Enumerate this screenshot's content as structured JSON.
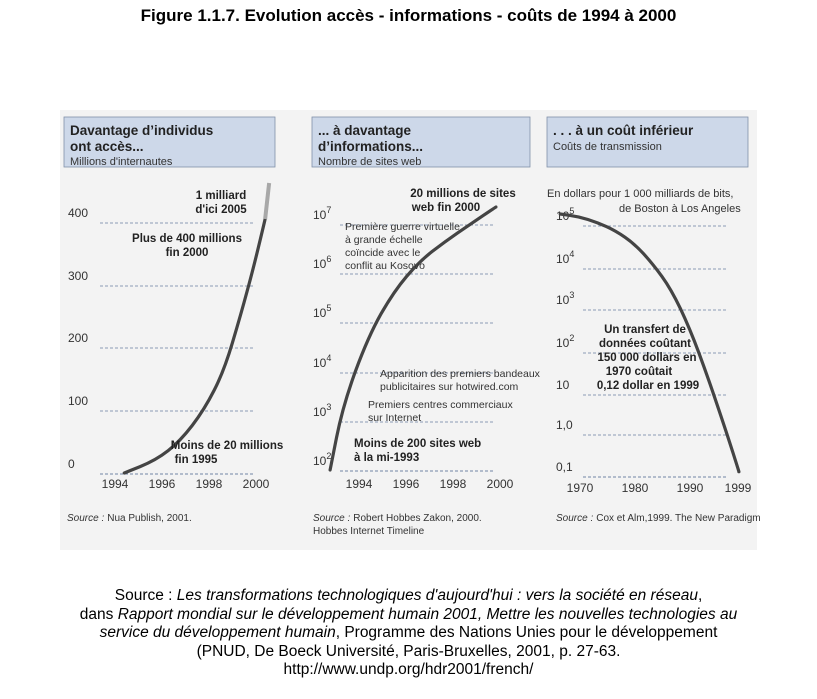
{
  "figure_title": "Figure 1.1.7. Evolution accès - informations - coûts de 1994 à 2000",
  "source": {
    "line1_prefix": "Source : ",
    "line1_italic": "Les transformations technologiques d'aujourd'hui : vers la société en réseau",
    "line1_suffix": ",",
    "line2_prefix": "dans ",
    "line2_italic": "Rapport mondial sur le développement humain 2001, Mettre les nouvelles technologies au",
    "line3_italic": "service du développement humain",
    "line3_suffix": ", Programme des Nations Unies pour le développement",
    "line4": "(PNUD, De Boeck Université, Paris-Bruxelles, 2001, p. 27-63.",
    "line5": "http://www.undp.org/hdr2001/french/"
  },
  "colors": {
    "header_fill": "#cdd8e9",
    "curve": "#444444",
    "grid": "#6a7fa0",
    "scan_bg": "#f3f3f3",
    "upper_segment": "#a8a8a8"
  },
  "chart_data": [
    {
      "type": "line",
      "title": "Davantage d'individus ont accès...",
      "subtitle": "Millions d'internautes",
      "source_note_label": "Source :",
      "source_note": "Nua Publish, 2001.",
      "x_ticks": [
        "1994",
        "1996",
        "1998",
        "2000"
      ],
      "y_ticks": [
        "0",
        "100",
        "200",
        "300",
        "400"
      ],
      "xlim": [
        1993.2,
        2000.2
      ],
      "ylim": [
        0,
        400
      ],
      "series": [
        {
          "x": [
            1994.2,
            1995.5,
            1996.5,
            1997.5,
            1998.3,
            1999.0,
            1999.5,
            2000.0
          ],
          "y": [
            0,
            20,
            50,
            100,
            160,
            250,
            320,
            400
          ]
        }
      ],
      "projection": {
        "x": [
          2000.0,
          2000.2
        ],
        "y": [
          400,
          450
        ]
      },
      "annotations": [
        {
          "text": "1 milliard",
          "bold": true
        },
        {
          "text": "d'ici 2005",
          "bold": true
        },
        {
          "text": "Plus de 400 millions",
          "bold": true
        },
        {
          "text": "fin 2000",
          "bold": true
        },
        {
          "text": "Moins de 20 millions",
          "bold": true
        },
        {
          "text": "fin 1995",
          "bold": true
        }
      ]
    },
    {
      "type": "line",
      "y_scale": "log",
      "title": "... à davantage d'informations...",
      "subtitle": "Nombre de sites web",
      "source_note_label": "Source :",
      "source_note": "Robert Hobbes Zakon, 2000.",
      "source_note2": "Hobbes Internet Timeline",
      "x_ticks": [
        "1994",
        "1996",
        "1998",
        "2000"
      ],
      "y_ticks": [
        {
          "base": "10",
          "exp": "2"
        },
        {
          "base": "10",
          "exp": "3"
        },
        {
          "base": "10",
          "exp": "4"
        },
        {
          "base": "10",
          "exp": "5"
        },
        {
          "base": "10",
          "exp": "6"
        },
        {
          "base": "10",
          "exp": "7"
        }
      ],
      "xlim": [
        1993.3,
        2000.2
      ],
      "ylim": [
        100,
        20000000
      ],
      "series": [
        {
          "x": [
            1993.5,
            1994.0,
            1995.0,
            1996.0,
            1997.0,
            1998.0,
            1999.0,
            2000.0
          ],
          "y": [
            100,
            2000,
            50000,
            400000,
            1600000,
            4000000,
            9000000,
            20000000
          ]
        }
      ],
      "annotations": [
        {
          "text": "20 millions de sites",
          "bold": true
        },
        {
          "text": "web fin 2000",
          "bold": true
        },
        {
          "text": "Première guerre virtuelle",
          "bold": false
        },
        {
          "text": "à grande échelle",
          "bold": false
        },
        {
          "text": "coïncide avec le",
          "bold": false
        },
        {
          "text": "conflit au Kosovo",
          "bold": false
        },
        {
          "text": "Apparition des premiers bandeaux",
          "bold": false
        },
        {
          "text": "publicitaires sur hotwired.com",
          "bold": false
        },
        {
          "text": "Premiers centres commerciaux",
          "bold": false
        },
        {
          "text": "sur Internet",
          "bold": false
        },
        {
          "text": "Moins de 200 sites web",
          "bold": true
        },
        {
          "text": "à la mi-1993",
          "bold": true
        }
      ]
    },
    {
      "type": "line",
      "y_scale": "log",
      "title": ". . . à un coût inférieur",
      "subtitle": "Coûts de transmission",
      "source_note_label": "Source :",
      "source_note": "Cox et Alm,1999. The New Paradigm",
      "unit_note": "En dollars pour 1 000 milliards de bits,",
      "unit_note2": "de Boston à Los Angeles",
      "x_ticks": [
        "1970",
        "1980",
        "1990",
        "1999"
      ],
      "y_ticks": [
        {
          "base": "0,1",
          "exp": ""
        },
        {
          "base": "1,0",
          "exp": ""
        },
        {
          "base": "10",
          "exp": ""
        },
        {
          "base": "10",
          "exp": "2"
        },
        {
          "base": "10",
          "exp": "3"
        },
        {
          "base": "10",
          "exp": "4"
        },
        {
          "base": "10",
          "exp": "5"
        }
      ],
      "xlim": [
        1969,
        1999.5
      ],
      "ylim": [
        0.1,
        150000
      ],
      "series": [
        {
          "x": [
            1970,
            1973,
            1976,
            1979,
            1982,
            1985,
            1988,
            1991,
            1994,
            1997,
            1999
          ],
          "y": [
            150000,
            130000,
            95000,
            60000,
            30000,
            10000,
            2500,
            300,
            20,
            1,
            0.12
          ]
        }
      ],
      "annotations": [
        {
          "text": "Un transfert de",
          "bold": true
        },
        {
          "text": "données coûtant",
          "bold": true
        },
        {
          "text": "150 000 dollars en",
          "bold": true
        },
        {
          "text": "1970 coûtait",
          "bold": true
        },
        {
          "text": "0,12 dollar en 1999",
          "bold": true
        }
      ]
    }
  ]
}
